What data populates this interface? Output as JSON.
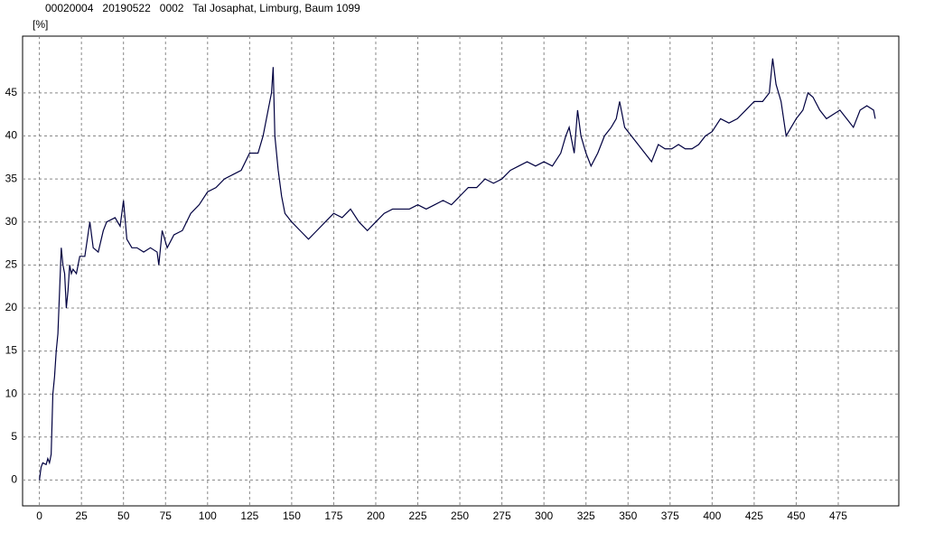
{
  "chart_data": {
    "type": "line",
    "title": "00020004   20190522   0002   Tal Josaphat, Limburg, Baum 1099",
    "y_label": "[%]",
    "grid": true,
    "xlim": [
      -10,
      511
    ],
    "ylim": [
      -3,
      51.6
    ],
    "xticks": [
      0,
      25,
      50,
      75,
      100,
      125,
      150,
      175,
      200,
      225,
      250,
      275,
      300,
      325,
      350,
      375,
      400,
      425,
      450,
      475
    ],
    "yticks": [
      0,
      5,
      10,
      15,
      20,
      25,
      30,
      35,
      40,
      45
    ],
    "x": [
      0,
      1,
      2,
      4,
      5,
      6,
      7,
      8,
      9,
      10,
      11,
      12,
      13,
      14,
      15,
      16,
      17,
      18,
      19,
      20,
      22,
      24,
      27,
      30,
      32,
      35,
      38,
      40,
      45,
      48,
      50,
      52,
      55,
      58,
      62,
      66,
      70,
      71,
      73,
      76,
      80,
      85,
      90,
      95,
      100,
      105,
      110,
      115,
      120,
      125,
      130,
      133,
      136,
      138,
      139,
      140,
      142,
      144,
      146,
      150,
      155,
      160,
      165,
      170,
      175,
      180,
      185,
      190,
      195,
      200,
      205,
      210,
      215,
      220,
      225,
      230,
      235,
      240,
      245,
      250,
      255,
      260,
      265,
      270,
      275,
      280,
      285,
      290,
      295,
      300,
      305,
      310,
      313,
      315,
      318,
      320,
      322,
      325,
      328,
      332,
      336,
      340,
      343,
      345,
      348,
      352,
      356,
      360,
      364,
      368,
      372,
      376,
      380,
      384,
      388,
      392,
      396,
      400,
      405,
      410,
      415,
      420,
      425,
      430,
      434,
      436,
      438,
      441,
      444,
      447,
      450,
      454,
      457,
      460,
      464,
      468,
      472,
      476,
      480,
      484,
      488,
      492,
      496,
      497
    ],
    "series": [
      {
        "name": "Baum 1099",
        "color": "#000040",
        "values": [
          0,
          1.5,
          2,
          1.8,
          2.5,
          2,
          3,
          10,
          12,
          15,
          17,
          22,
          27,
          25,
          24,
          20,
          22,
          25,
          24,
          24.5,
          24,
          26,
          26,
          30,
          27,
          26.5,
          29,
          30,
          30.5,
          29.5,
          32.5,
          28,
          27,
          27,
          26.5,
          27,
          26.5,
          25,
          29,
          27,
          28.5,
          29,
          31,
          32,
          33.5,
          34,
          35,
          35.5,
          36,
          38,
          38,
          40,
          43,
          45,
          48,
          40,
          36,
          33,
          31,
          30,
          29,
          28,
          29,
          30,
          31,
          30.5,
          31.5,
          30,
          29,
          30,
          31,
          31.5,
          31.5,
          31.5,
          32,
          31.5,
          32,
          32.5,
          32,
          33,
          34,
          34,
          35,
          34.5,
          35,
          36,
          36.5,
          37,
          36.5,
          37,
          36.5,
          38,
          40,
          41,
          38,
          43,
          40,
          38,
          36.5,
          38,
          40,
          41,
          42,
          44,
          41,
          40,
          39,
          38,
          37,
          39,
          38.5,
          38.5,
          39,
          38.5,
          38.5,
          39,
          40,
          40.5,
          42,
          41.5,
          42,
          43,
          44,
          44,
          45,
          49,
          46,
          44,
          40,
          41,
          42,
          43,
          45,
          44.5,
          43,
          42,
          42.5,
          43,
          42,
          41,
          43,
          43.5,
          43,
          42
        ]
      }
    ]
  }
}
